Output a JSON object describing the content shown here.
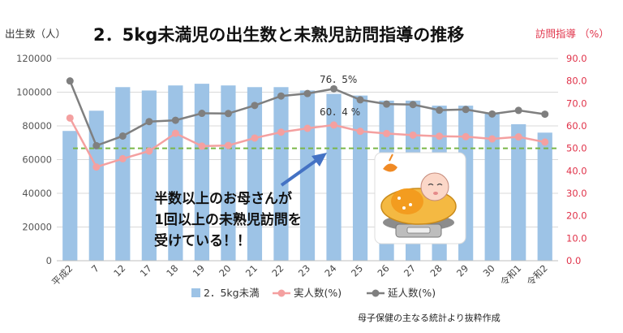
{
  "chart_data": {
    "type": "bar",
    "title": "2．5kg未満児の出生数と未熟児訪問指導の推移",
    "ylabel_left": "出生数（人）",
    "ylabel_right": "訪問指導 （%）",
    "ylim_left": [
      0,
      120000
    ],
    "ylim_right": [
      0,
      90
    ],
    "yticks_left": [
      "0",
      "20000",
      "40000",
      "60000",
      "80000",
      "100000",
      "120000"
    ],
    "yticks_right": [
      "0.0",
      "10.0",
      "20.0",
      "30.0",
      "40.0",
      "50.0",
      "60.0",
      "70.0",
      "80.0",
      "90.0"
    ],
    "categories": [
      "平成2",
      "7",
      "12",
      "17",
      "18",
      "19",
      "20",
      "21",
      "22",
      "23",
      "24",
      "25",
      "26",
      "27",
      "28",
      "29",
      "30",
      "令和1",
      "令和2"
    ],
    "series": [
      {
        "name": "2．5kg未満",
        "type": "bar",
        "axis": "left",
        "color": "#9DC3E6",
        "values": [
          77000,
          89000,
          103000,
          101000,
          104000,
          105000,
          104000,
          103000,
          103000,
          101000,
          99000,
          98000,
          95000,
          95000,
          92000,
          92000,
          88000,
          81000,
          76000
        ]
      },
      {
        "name": "実人数(%)",
        "type": "line",
        "axis": "right",
        "color": "#F4A0A0",
        "values": [
          63.5,
          41.7,
          45.4,
          48.8,
          56.7,
          51.0,
          51.3,
          54.6,
          57.2,
          58.9,
          60.4,
          57.6,
          56.6,
          55.9,
          55.4,
          55.2,
          54.2,
          55.1,
          52.8
        ]
      },
      {
        "name": "延人数(%)",
        "type": "line",
        "axis": "right",
        "color": "#7F7F7F",
        "values": [
          80.0,
          51.2,
          55.5,
          61.9,
          62.5,
          65.6,
          65.5,
          69.1,
          73.3,
          74.4,
          76.5,
          71.6,
          69.7,
          69.5,
          67.0,
          67.3,
          65.3,
          66.9,
          65.2
        ]
      }
    ],
    "reference_line": {
      "value": 50,
      "axis": "right",
      "color": "#7AB648"
    },
    "data_labels": [
      {
        "text": "76．5%",
        "series": 2,
        "index": 10
      },
      {
        "text": "60．4 %",
        "series": 1,
        "index": 10
      }
    ],
    "annotation": [
      "半数以上のお母さんが",
      "1回以上の未熟児訪問を",
      "受けている！！"
    ],
    "source": "母子保健の主なる統計より抜粋作成",
    "legend_position": "bottom",
    "grid": true
  }
}
